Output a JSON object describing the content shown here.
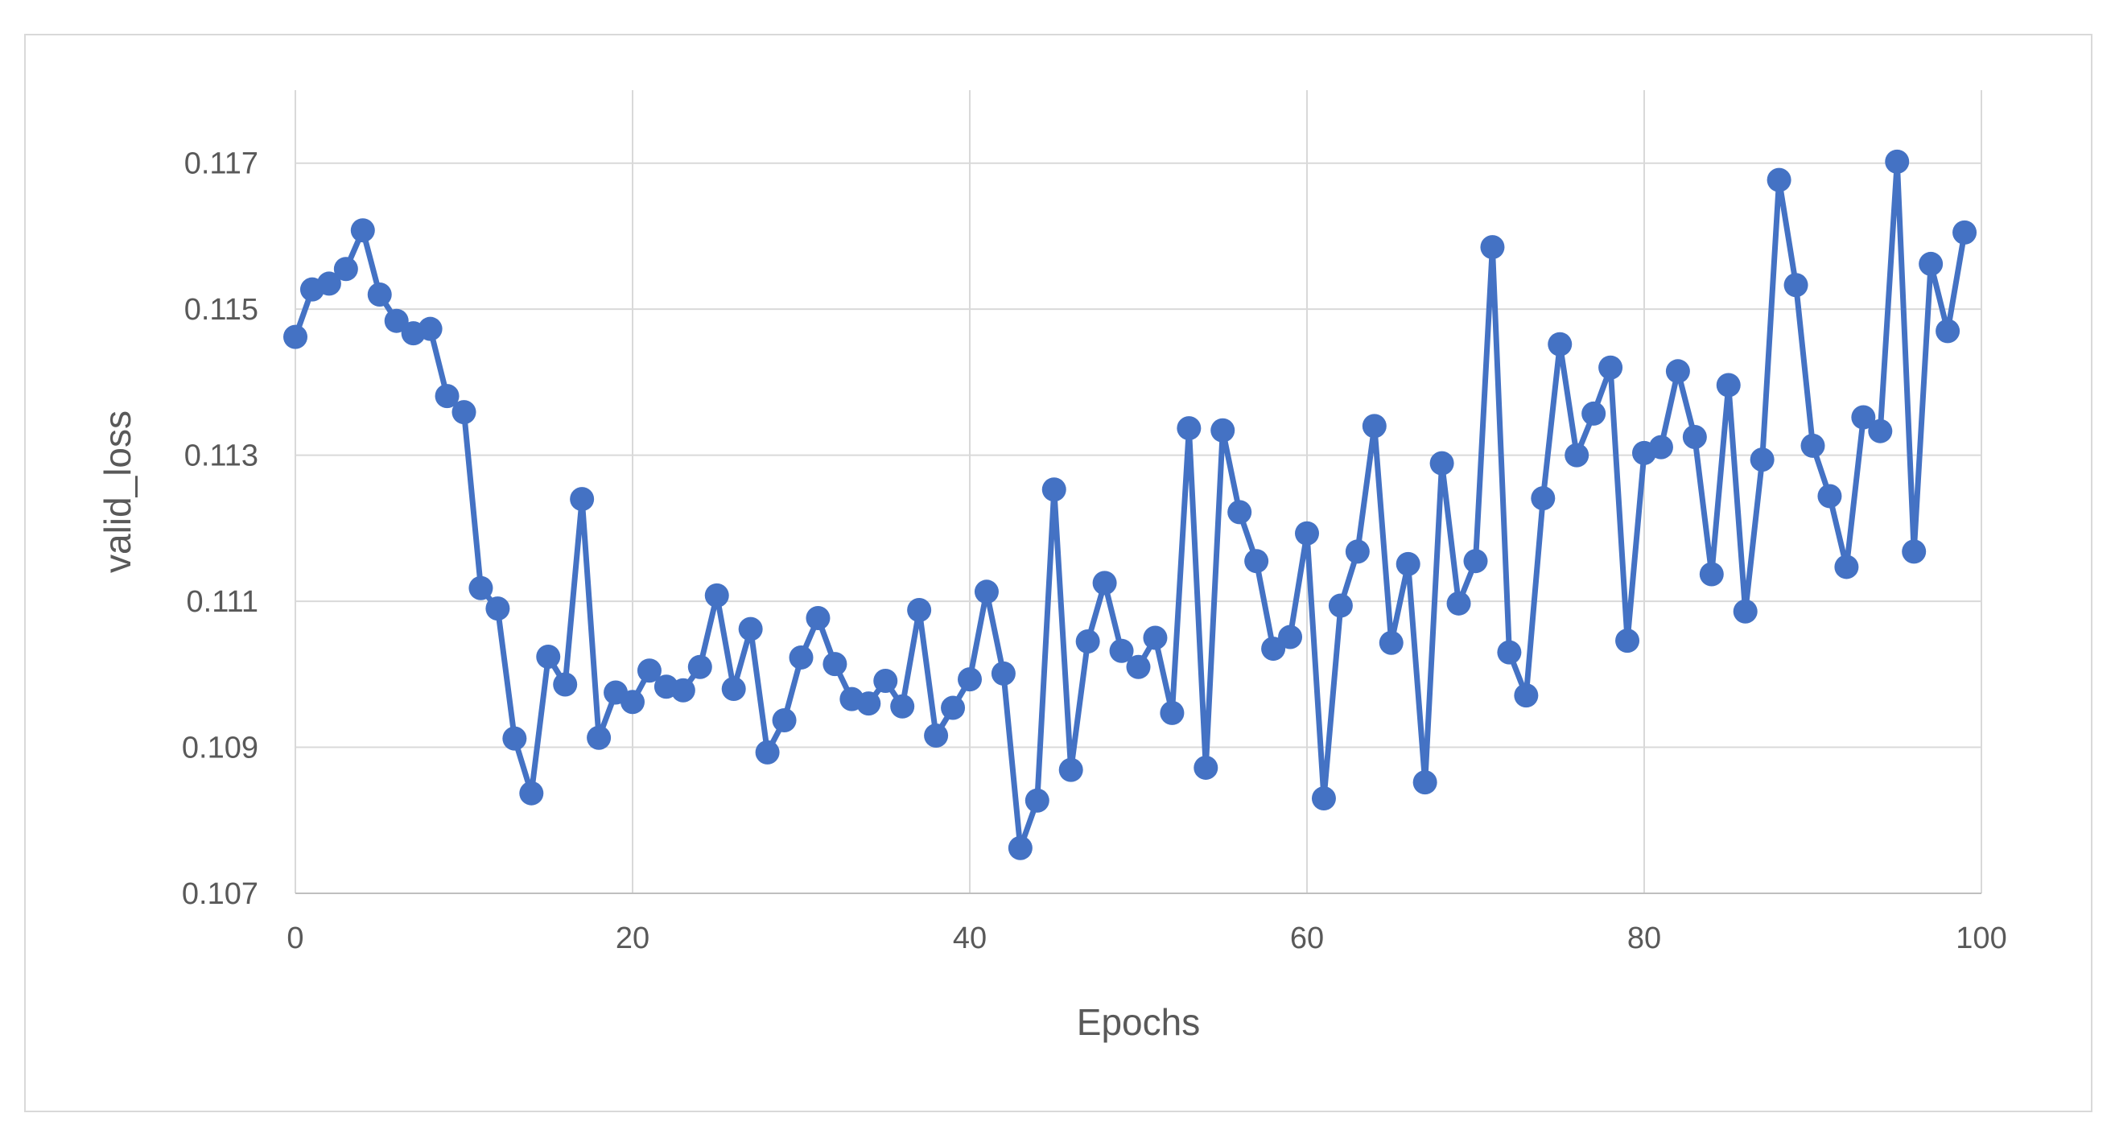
{
  "chart_data": {
    "type": "line",
    "title": "",
    "xlabel": "Epochs",
    "ylabel": "valid_loss",
    "xlim": [
      0,
      100
    ],
    "ylim": [
      0.107,
      0.118
    ],
    "x_ticks": [
      "0",
      "20",
      "40",
      "60",
      "80",
      "100"
    ],
    "y_ticks": [
      "0.107",
      "0.109",
      "0.111",
      "0.113",
      "0.115",
      "0.117"
    ],
    "grid": true,
    "legend": "none",
    "series": [
      {
        "color": "#4472c4",
        "marker": "circle",
        "x": [
          0,
          1,
          2,
          3,
          4,
          5,
          6,
          7,
          8,
          9,
          10,
          11,
          12,
          13,
          14,
          15,
          16,
          17,
          18,
          19,
          20,
          21,
          22,
          23,
          24,
          25,
          26,
          27,
          28,
          29,
          30,
          31,
          32,
          33,
          34,
          35,
          36,
          37,
          38,
          39,
          40,
          41,
          42,
          43,
          44,
          45,
          46,
          47,
          48,
          49,
          50,
          51,
          52,
          53,
          54,
          55,
          56,
          57,
          58,
          59,
          60,
          61,
          62,
          63,
          64,
          65,
          66,
          67,
          68,
          69,
          70,
          71,
          72,
          73,
          74,
          75,
          76,
          77,
          78,
          79,
          80,
          81,
          82,
          83,
          84,
          85,
          86,
          87,
          88,
          89,
          90,
          91,
          92,
          93,
          94,
          95,
          96,
          97,
          98,
          99
        ],
        "values": [
          0.11462,
          0.11527,
          0.11535,
          0.11555,
          0.11608,
          0.1152,
          0.11484,
          0.11467,
          0.11473,
          0.11381,
          0.11359,
          0.11118,
          0.1109,
          0.10912,
          0.10837,
          0.11024,
          0.10986,
          0.1124,
          0.10913,
          0.10975,
          0.10962,
          0.11005,
          0.10983,
          0.10978,
          0.1101,
          0.11108,
          0.1098,
          0.11062,
          0.10893,
          0.10937,
          0.11023,
          0.11077,
          0.11014,
          0.10966,
          0.1096,
          0.10991,
          0.10956,
          0.11088,
          0.10916,
          0.10954,
          0.10993,
          0.11113,
          0.11001,
          0.10762,
          0.10827,
          0.11253,
          0.10869,
          0.11045,
          0.11125,
          0.11032,
          0.1101,
          0.1105,
          0.10947,
          0.11337,
          0.10872,
          0.11334,
          0.11222,
          0.11155,
          0.11035,
          0.11051,
          0.11193,
          0.1083,
          0.11094,
          0.11168,
          0.1134,
          0.11043,
          0.11151,
          0.10852,
          0.11289,
          0.11097,
          0.11155,
          0.11585,
          0.1103,
          0.10971,
          0.11241,
          0.11452,
          0.113,
          0.11357,
          0.1142,
          0.11046,
          0.11303,
          0.11311,
          0.11415,
          0.11325,
          0.11137,
          0.11396,
          0.11086,
          0.11294,
          0.11677,
          0.11533,
          0.11313,
          0.11244,
          0.11147,
          0.11352,
          0.11333,
          0.11702,
          0.11168,
          0.11562,
          0.1147,
          0.11605
        ]
      }
    ]
  }
}
